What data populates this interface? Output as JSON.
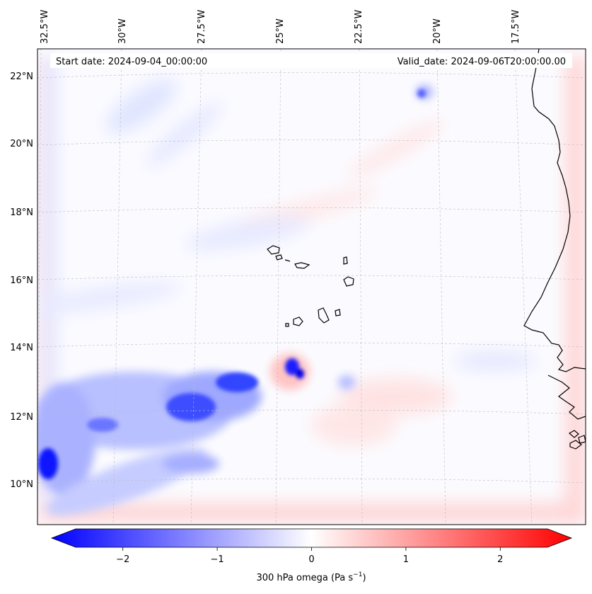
{
  "map": {
    "start_date": "Start date: 2024-09-04_00:00:00",
    "valid_date": "Valid_date: 2024-09-06T20:00:00.00",
    "lon_labels": [
      "32.5°W",
      "30°W",
      "27.5°W",
      "25°W",
      "22.5°W",
      "20°W",
      "17.5°W"
    ],
    "lat_labels": [
      "22°N",
      "20°N",
      "18°N",
      "16°N",
      "14°N",
      "12°N",
      "10°N"
    ],
    "gridlines": true,
    "field_colors": {
      "negative": "#0000ff",
      "neutral": "#ffffff",
      "positive": "#ff0000"
    }
  },
  "colorbar": {
    "ticks": [
      "−2",
      "−1",
      "0",
      "1",
      "2"
    ],
    "tick_values": [
      -2,
      -1,
      0,
      1,
      2
    ],
    "range": [
      -2.5,
      2.5
    ],
    "title_main": "300 hPa omega (Pa s",
    "title_sup": "−1",
    "title_end": ")"
  }
}
